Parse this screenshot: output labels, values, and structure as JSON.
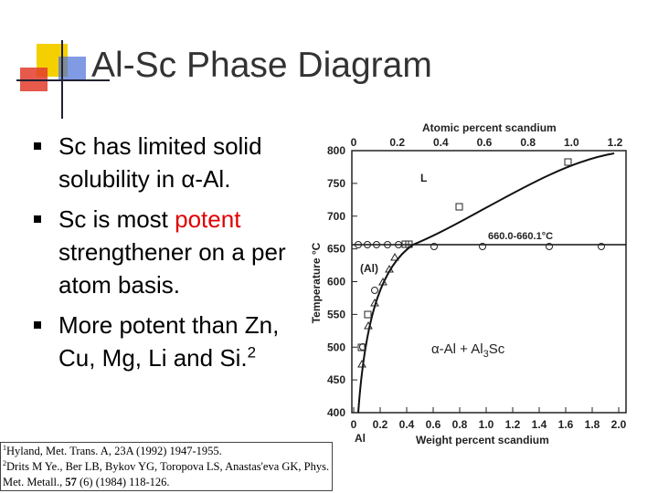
{
  "slide": {
    "title": "Al-Sc Phase Diagram",
    "bullets": [
      {
        "text": "Sc has limited solid solubility in α-Al."
      },
      {
        "before": "Sc is most ",
        "highlight": "potent",
        "after": " strengthener on a per atom basis."
      },
      {
        "text": "More potent than Zn, Cu, Mg, Li and Si.",
        "superscript": "2"
      }
    ],
    "references": [
      {
        "marker": "1",
        "text": "Hyland, Met. Trans. A, 23A (1992) 1947-1955."
      },
      {
        "marker": "2",
        "before": "Drits M Ye., Ber LB, Bykov YG, Toropova LS, Anastas'eva GK, Phys. Met. Metall., ",
        "bold": "57",
        "after": " (6) (1984) 118-126."
      }
    ],
    "figure": {
      "top_axis_title": "Atomic percent scandium",
      "top_ticks": [
        "0",
        "0.2",
        "0.4",
        "0.6",
        "0.8",
        "1.0",
        "1.2"
      ],
      "bottom_axis_title": "Weight percent scandium",
      "bottom_ticks": [
        "0",
        "0.2",
        "0.4",
        "0.6",
        "0.8",
        "1.0",
        "1.2",
        "1.4",
        "1.6",
        "1.8",
        "2.0"
      ],
      "y_axis_title": "Temperature °C",
      "y_ticks": [
        "800",
        "750",
        "700",
        "650",
        "600",
        "550",
        "500",
        "450",
        "400"
      ],
      "liquid_label": "L",
      "solid_label": "(Al)",
      "eutectic_label": "660.0-660.1°C",
      "element_label": "Al",
      "phase_label": {
        "text": "α-Al + Al",
        "subscript": "3",
        "after": "Sc"
      }
    }
  }
}
